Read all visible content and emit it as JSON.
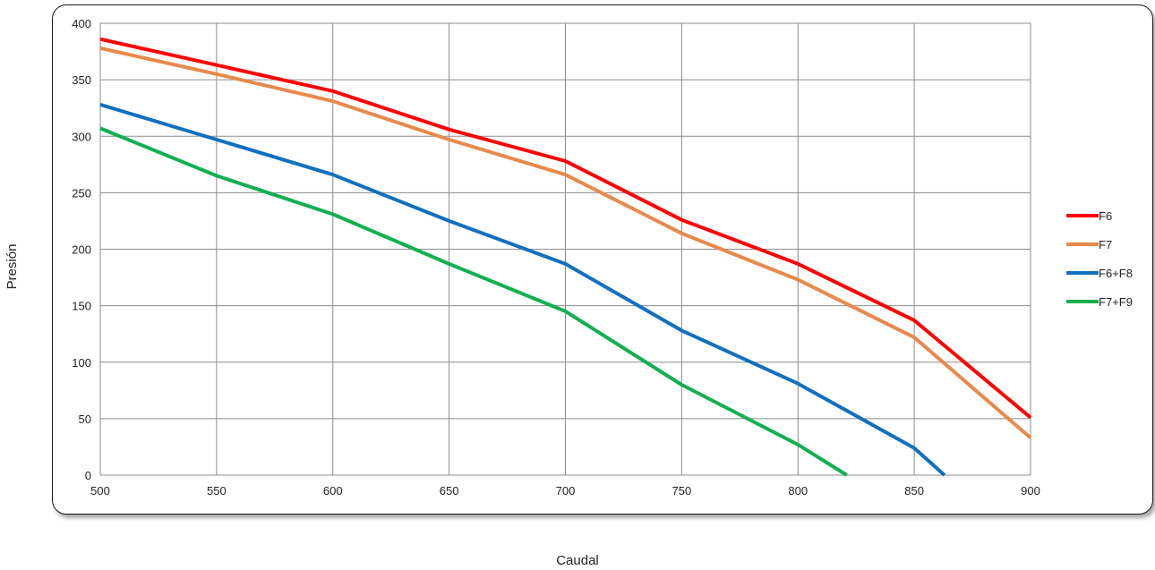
{
  "chart_data": {
    "type": "line",
    "xlabel": "Caudal",
    "ylabel": "Presión",
    "xlim": [
      500,
      900
    ],
    "ylim": [
      0,
      400
    ],
    "xticks": [
      500,
      550,
      600,
      650,
      700,
      750,
      800,
      850,
      900
    ],
    "yticks": [
      0,
      50,
      100,
      150,
      200,
      250,
      300,
      350,
      400
    ],
    "grid": true,
    "legend": "right",
    "series": [
      {
        "name": "F6",
        "color": "#ff0000",
        "points": [
          [
            500,
            386
          ],
          [
            550,
            363
          ],
          [
            600,
            340
          ],
          [
            650,
            306
          ],
          [
            700,
            278
          ],
          [
            750,
            226
          ],
          [
            800,
            187
          ],
          [
            850,
            137
          ],
          [
            900,
            51
          ]
        ]
      },
      {
        "name": "F7",
        "color": "#e8894a",
        "points": [
          [
            500,
            378
          ],
          [
            550,
            355
          ],
          [
            600,
            331
          ],
          [
            650,
            297
          ],
          [
            700,
            266
          ],
          [
            750,
            214
          ],
          [
            800,
            173
          ],
          [
            850,
            122
          ],
          [
            900,
            33
          ]
        ]
      },
      {
        "name": "F6+F8",
        "color": "#1070c0",
        "points": [
          [
            500,
            328
          ],
          [
            550,
            297
          ],
          [
            600,
            266
          ],
          [
            650,
            225
          ],
          [
            700,
            187
          ],
          [
            750,
            128
          ],
          [
            800,
            81
          ],
          [
            850,
            24
          ],
          [
            863,
            0
          ]
        ]
      },
      {
        "name": "F7+F9",
        "color": "#10b050",
        "points": [
          [
            500,
            307
          ],
          [
            550,
            265
          ],
          [
            600,
            231
          ],
          [
            650,
            187
          ],
          [
            700,
            145
          ],
          [
            750,
            80
          ],
          [
            800,
            27
          ],
          [
            821,
            0
          ]
        ]
      }
    ]
  }
}
